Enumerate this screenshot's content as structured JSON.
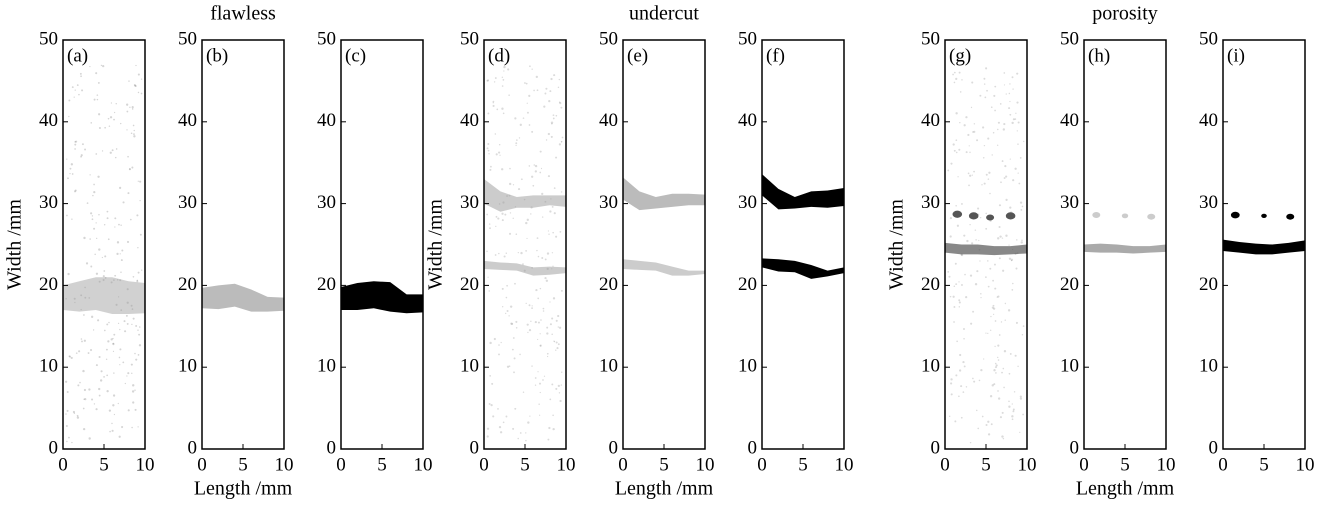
{
  "chart_data": [
    {
      "type": "image",
      "panel_label": "(a)",
      "ylabel": "Width /mm",
      "xlim": [
        0,
        10
      ],
      "ylim": [
        0,
        50
      ],
      "xticks": [
        0,
        5,
        10
      ],
      "yticks": [
        0,
        10,
        20,
        30,
        40,
        50
      ]
    },
    {
      "type": "image",
      "panel_label": "(b)",
      "title": "flawless",
      "xlabel": "Length /mm",
      "xlim": [
        0,
        10
      ],
      "ylim": [
        0,
        50
      ],
      "xticks": [
        0,
        5,
        10
      ],
      "yticks": [
        0,
        10,
        20,
        30,
        40,
        50
      ]
    },
    {
      "type": "image",
      "panel_label": "(c)",
      "xlim": [
        0,
        10
      ],
      "ylim": [
        0,
        50
      ],
      "xticks": [
        0,
        5,
        10
      ],
      "yticks": [
        0,
        10,
        20,
        30,
        40,
        50
      ]
    },
    {
      "type": "image",
      "panel_label": "(d)",
      "ylabel": "Width /mm",
      "xlim": [
        0,
        10
      ],
      "ylim": [
        0,
        50
      ],
      "xticks": [
        0,
        5,
        10
      ],
      "yticks": [
        0,
        10,
        20,
        30,
        40,
        50
      ]
    },
    {
      "type": "image",
      "panel_label": "(e)",
      "title": "undercut",
      "xlabel": "Length /mm",
      "xlim": [
        0,
        10
      ],
      "ylim": [
        0,
        50
      ],
      "xticks": [
        0,
        5,
        10
      ],
      "yticks": [
        0,
        10,
        20,
        30,
        40,
        50
      ]
    },
    {
      "type": "image",
      "panel_label": "(f)",
      "xlim": [
        0,
        10
      ],
      "ylim": [
        0,
        50
      ],
      "xticks": [
        0,
        5,
        10
      ],
      "yticks": [
        0,
        10,
        20,
        30,
        40,
        50
      ]
    },
    {
      "type": "image",
      "panel_label": "(g)",
      "ylabel": "Width /mm",
      "xlim": [
        0,
        10
      ],
      "ylim": [
        0,
        50
      ],
      "xticks": [
        0,
        5,
        10
      ],
      "yticks": [
        0,
        10,
        20,
        30,
        40,
        50
      ]
    },
    {
      "type": "image",
      "panel_label": "(h)",
      "title": "porosity",
      "xlabel": "Length /mm",
      "xlim": [
        0,
        10
      ],
      "ylim": [
        0,
        50
      ],
      "xticks": [
        0,
        5,
        10
      ],
      "yticks": [
        0,
        10,
        20,
        30,
        40,
        50
      ]
    },
    {
      "type": "image",
      "panel_label": "(i)",
      "xlim": [
        0,
        10
      ],
      "ylim": [
        0,
        50
      ],
      "xticks": [
        0,
        5,
        10
      ],
      "yticks": [
        0,
        10,
        20,
        30,
        40,
        50
      ]
    }
  ]
}
